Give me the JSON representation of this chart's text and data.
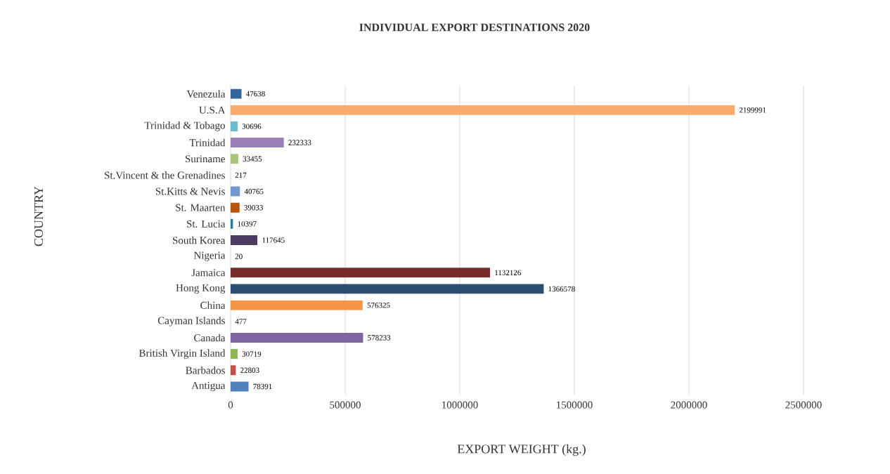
{
  "chart_data": {
    "type": "bar",
    "orientation": "horizontal",
    "title": "INDIVIDUAL EXPORT DESTINATIONS 2020",
    "xlabel": "EXPORT WEIGHT (kg.)",
    "ylabel": "COUNTRY",
    "categories": [
      "Venezula",
      "U.S.A",
      "Trinidad & Tobago",
      "Trinidad",
      "Suriname",
      "St.Vincent & the Grenadines",
      "St.Kitts & Nevis",
      "St. Maarten",
      "St. Lucia",
      "South Korea",
      "Nigeria",
      "Jamaica",
      "Hong Kong",
      "China",
      "Cayman Islands",
      "Canada",
      "British Virgin Island",
      "Barbados",
      "Antigua"
    ],
    "values": [
      47638,
      2199991,
      30696,
      232333,
      33455,
      217,
      40765,
      39033,
      10397,
      117645,
      20,
      1132126,
      1366578,
      576325,
      477,
      578233,
      30719,
      22803,
      78391
    ],
    "colors": [
      "#36649c",
      "#f9ac6e",
      "#6cbcd0",
      "#9a80b6",
      "#aac57a",
      "#4f81bd",
      "#7198cf",
      "#b5560e",
      "#2a7c8e",
      "#4b3a61",
      "#c0504d",
      "#772b2a",
      "#2d4e73",
      "#f69545",
      "#8064a1",
      "#8064a1",
      "#8fb553",
      "#c0504d",
      "#4f81bd"
    ],
    "data_labels": true,
    "grid": "x",
    "xlim": [
      0,
      2500000
    ],
    "xticks": [
      0,
      500000,
      1000000,
      1500000,
      2000000,
      2500000
    ]
  }
}
